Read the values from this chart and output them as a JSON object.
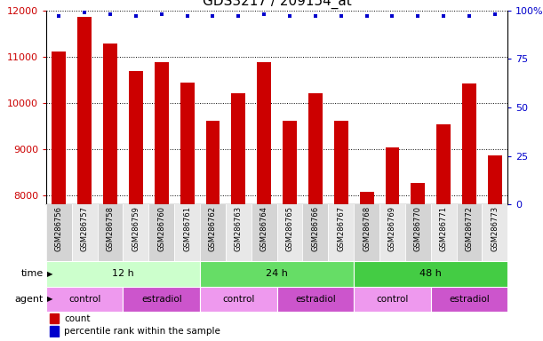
{
  "title": "GDS3217 / 209154_at",
  "samples": [
    "GSM286756",
    "GSM286757",
    "GSM286758",
    "GSM286759",
    "GSM286760",
    "GSM286761",
    "GSM286762",
    "GSM286763",
    "GSM286764",
    "GSM286765",
    "GSM286766",
    "GSM286767",
    "GSM286768",
    "GSM286769",
    "GSM286770",
    "GSM286771",
    "GSM286772",
    "GSM286773"
  ],
  "counts": [
    11100,
    11850,
    11280,
    10680,
    10870,
    10430,
    9620,
    10210,
    10870,
    9610,
    10200,
    9620,
    8080,
    9030,
    8270,
    9530,
    10410,
    8870
  ],
  "percentile_ranks": [
    97,
    99,
    98,
    97,
    98,
    97,
    97,
    97,
    98,
    97,
    97,
    97,
    97,
    97,
    97,
    97,
    97,
    98
  ],
  "bar_color": "#cc0000",
  "dot_color": "#0000cc",
  "ylim_left": [
    7800,
    12000
  ],
  "ylim_right": [
    0,
    100
  ],
  "yticks_left": [
    8000,
    9000,
    10000,
    11000,
    12000
  ],
  "yticks_right": [
    0,
    25,
    50,
    75,
    100
  ],
  "time_groups": [
    {
      "label": "12 h",
      "start": 0,
      "end": 6,
      "color": "#ccffcc"
    },
    {
      "label": "24 h",
      "start": 6,
      "end": 12,
      "color": "#66dd66"
    },
    {
      "label": "48 h",
      "start": 12,
      "end": 18,
      "color": "#44cc44"
    }
  ],
  "agent_groups": [
    {
      "label": "control",
      "start": 0,
      "end": 3,
      "color": "#ee99ee"
    },
    {
      "label": "estradiol",
      "start": 3,
      "end": 6,
      "color": "#cc55cc"
    },
    {
      "label": "control",
      "start": 6,
      "end": 9,
      "color": "#ee99ee"
    },
    {
      "label": "estradiol",
      "start": 9,
      "end": 12,
      "color": "#cc55cc"
    },
    {
      "label": "control",
      "start": 12,
      "end": 15,
      "color": "#ee99ee"
    },
    {
      "label": "estradiol",
      "start": 15,
      "end": 18,
      "color": "#cc55cc"
    }
  ],
  "xlabel_time": "time",
  "xlabel_agent": "agent",
  "legend_count_label": "count",
  "legend_percentile_label": "percentile rank within the sample",
  "bg_color": "#ffffff",
  "tick_color_left": "#cc0000",
  "tick_color_right": "#0000cc",
  "title_fontsize": 11,
  "axis_fontsize": 8,
  "label_fontsize": 8,
  "sample_col_colors": [
    "#d4d4d4",
    "#e8e8e8"
  ]
}
